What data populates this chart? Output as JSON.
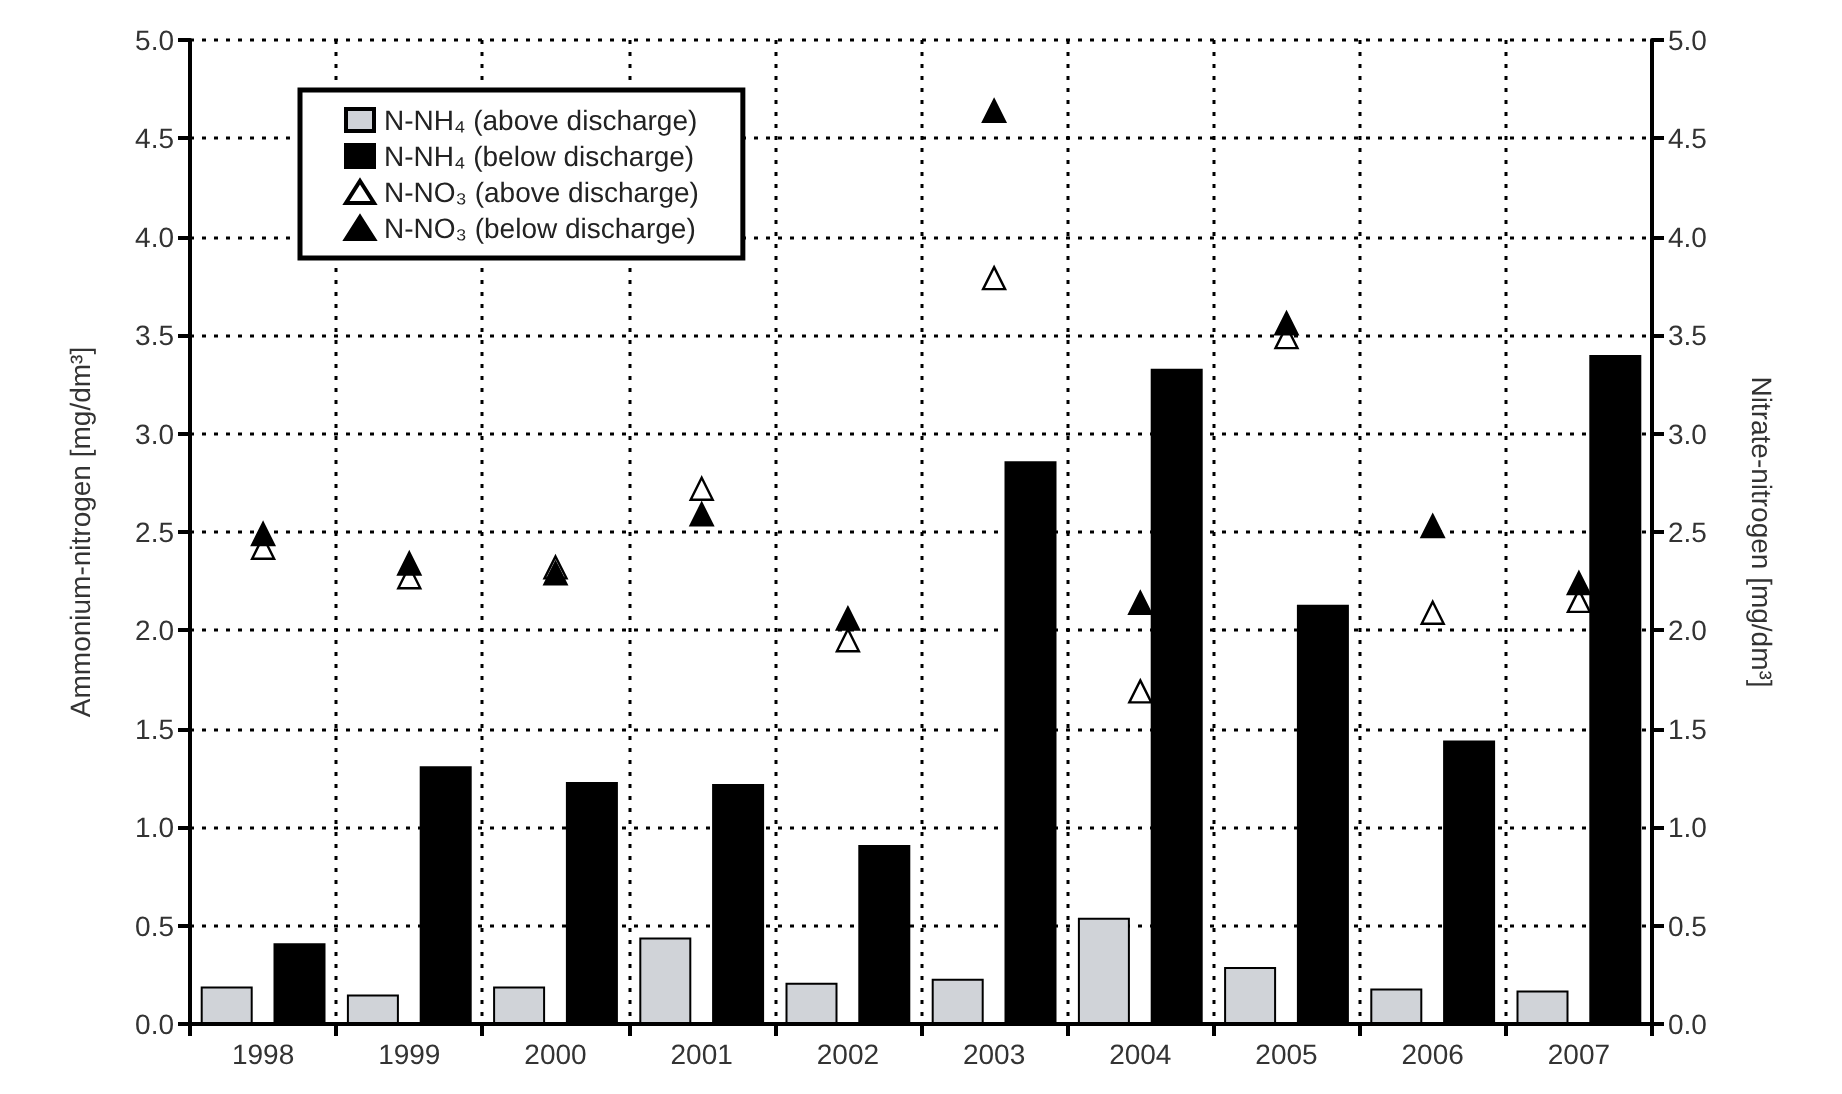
{
  "chart_data": {
    "type": "bar",
    "ylabel": "Ammonium-nitrogen [mg/dm³]",
    "y2label": "Nitrate-nitrogen [mg/dm³]",
    "categories": [
      "1998",
      "1999",
      "2000",
      "2001",
      "2002",
      "2003",
      "2004",
      "2005",
      "2006",
      "2007"
    ],
    "series": [
      {
        "name": "N-NH₄ (above discharge)",
        "color": "#d0d3d8",
        "values": [
          0.19,
          0.15,
          0.19,
          0.44,
          0.21,
          0.23,
          0.54,
          0.29,
          0.18,
          0.17
        ]
      },
      {
        "name": "N-NH₄ (below discharge)",
        "color": "#000000",
        "values": [
          0.41,
          1.31,
          1.23,
          1.22,
          0.91,
          2.86,
          3.33,
          2.13,
          1.44,
          3.4
        ]
      },
      {
        "name": "N-NO₃ (above discharge)",
        "type": "scatter",
        "axis": "y2",
        "marker": "triangle",
        "color": "#ffffff",
        "values": [
          2.42,
          2.27,
          2.32,
          2.72,
          1.95,
          3.79,
          1.69,
          3.49,
          2.09,
          2.15
        ]
      },
      {
        "name": "N-NO₃ (below discharge)",
        "type": "scatter",
        "axis": "y2",
        "marker": "triangle",
        "color": "#000000",
        "values": [
          2.49,
          2.34,
          2.29,
          2.59,
          2.06,
          4.64,
          2.14,
          3.56,
          2.53,
          2.24
        ]
      }
    ],
    "ylim": [
      0,
      5
    ],
    "yticks": [
      {
        "value": 0,
        "label": "0.0"
      },
      {
        "value": 0.5,
        "label": "0.5"
      },
      {
        "value": 1,
        "label": "1.0"
      },
      {
        "value": 1.5,
        "label": "1.5"
      },
      {
        "value": 2,
        "label": "2.0"
      },
      {
        "value": 2.5,
        "label": "2.5"
      },
      {
        "value": 3,
        "label": "3.0"
      },
      {
        "value": 3.5,
        "label": "3.5"
      },
      {
        "value": 4,
        "label": "4.0"
      },
      {
        "value": 4.5,
        "label": "4.5"
      },
      {
        "value": 5,
        "label": "5.0"
      }
    ],
    "y2lim": [
      0,
      5
    ],
    "y2ticks": [
      {
        "value": 0,
        "label": "0.0"
      },
      {
        "value": 0.5,
        "label": "0.5"
      },
      {
        "value": 1,
        "label": "1.0"
      },
      {
        "value": 1.5,
        "label": "1.5"
      },
      {
        "value": 2,
        "label": "2.0"
      },
      {
        "value": 2.5,
        "label": "2.5"
      },
      {
        "value": 3,
        "label": "3.0"
      },
      {
        "value": 3.5,
        "label": "3.5"
      },
      {
        "value": 4,
        "label": "4.0"
      },
      {
        "value": 4.5,
        "label": "4.5"
      },
      {
        "value": 5,
        "label": "5.0"
      }
    ],
    "grid": true,
    "legend": "top left"
  }
}
